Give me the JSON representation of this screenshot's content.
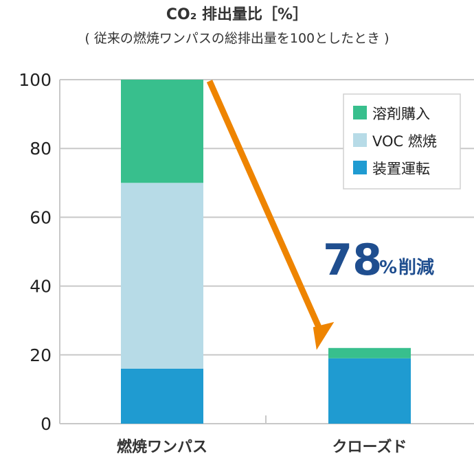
{
  "chart_data": {
    "type": "bar",
    "stacked": true,
    "title": "CO₂ 排出量比［%］",
    "subtitle": "( 従来の燃焼ワンパスの総排出量を100としたとき )",
    "categories": [
      "燃焼ワンパス",
      "クローズド"
    ],
    "series": [
      {
        "name": "装置運転",
        "values": [
          16,
          19
        ],
        "color": "#1f9bd1"
      },
      {
        "name": "VOC 燃焼",
        "values": [
          54,
          0
        ],
        "color": "#b7dbe7"
      },
      {
        "name": "溶剤購入",
        "values": [
          30,
          3
        ],
        "color": "#38bf8d"
      }
    ],
    "legend_order": [
      "溶剤購入",
      "VOC 燃焼",
      "装置運転"
    ],
    "ylim": [
      0,
      100
    ],
    "yticks": [
      0,
      20,
      40,
      60,
      80,
      100
    ],
    "grid": true,
    "legend_position": "top-right",
    "annotation": {
      "value": "78",
      "unit": "%",
      "label": "削減",
      "color": "#1f4e8f"
    },
    "arrow_color": "#ee8400"
  }
}
